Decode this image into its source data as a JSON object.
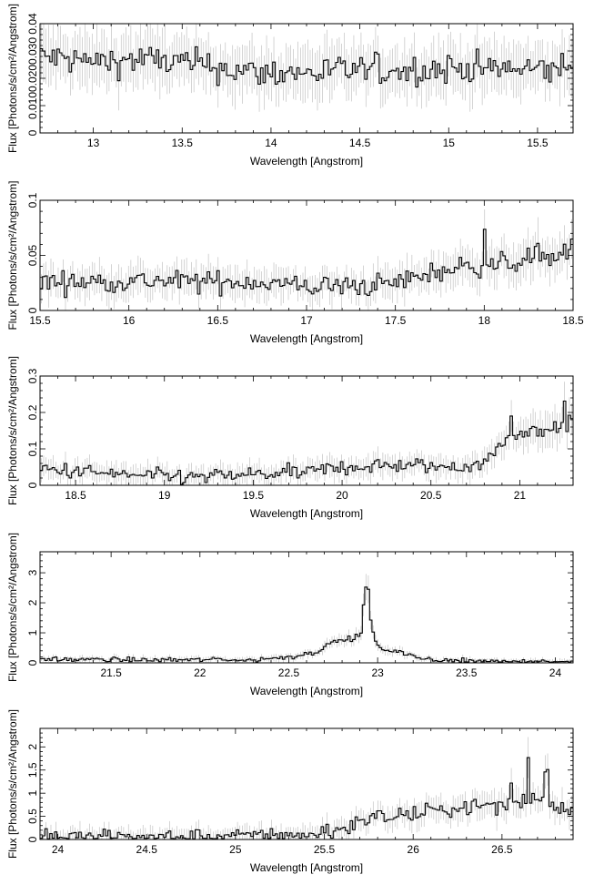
{
  "figure": {
    "ylabel_text": "Flux [Photons/s/cm²/Angstrom]",
    "xlabel_text": "Wavelength [Angstrom]"
  },
  "chart_data": [
    {
      "type": "line",
      "style": "step-histogram with error bars",
      "xlabel": "Wavelength [Angstrom]",
      "ylabel": "Flux [Photons/s/cm²/Angstrom]",
      "xlim": [
        12.7,
        15.7
      ],
      "ylim": [
        0,
        0.04
      ],
      "xticks": [
        13,
        13.5,
        14,
        14.5,
        15,
        15.5
      ],
      "xtick_labels": [
        "13",
        "13.5",
        "14",
        "14.5",
        "15",
        "15.5"
      ],
      "yticks": [
        0,
        0.01,
        0.02,
        0.03,
        0.04
      ],
      "ytick_labels": [
        "0",
        "0.010",
        "0.020",
        "0.030",
        "0.04"
      ],
      "grid": false,
      "x": [
        12.7,
        13.0,
        13.3,
        13.6,
        13.9,
        14.2,
        14.5,
        14.8,
        15.1,
        15.4,
        15.7
      ],
      "y": [
        0.028,
        0.026,
        0.027,
        0.025,
        0.022,
        0.022,
        0.023,
        0.023,
        0.024,
        0.023,
        0.024
      ],
      "noise": 0.004,
      "spikes": []
    },
    {
      "type": "line",
      "style": "step-histogram with error bars",
      "xlabel": "Wavelength [Angstrom]",
      "ylabel": "Flux [Photons/s/cm²/Angstrom]",
      "xlim": [
        15.5,
        18.5
      ],
      "ylim": [
        0,
        0.1
      ],
      "xticks": [
        15.5,
        16,
        16.5,
        17,
        17.5,
        18,
        18.5
      ],
      "xtick_labels": [
        "15.5",
        "16",
        "16.5",
        "17",
        "17.5",
        "18",
        "18.5"
      ],
      "yticks": [
        0,
        0.05,
        0.1
      ],
      "ytick_labels": [
        "0",
        "0.05",
        "0.1"
      ],
      "grid": false,
      "x": [
        15.5,
        15.8,
        16.1,
        16.4,
        16.7,
        17.0,
        17.3,
        17.5,
        17.7,
        17.9,
        18.1,
        18.3,
        18.5
      ],
      "y": [
        0.026,
        0.026,
        0.027,
        0.026,
        0.026,
        0.022,
        0.022,
        0.025,
        0.034,
        0.04,
        0.042,
        0.048,
        0.05
      ],
      "noise": 0.007,
      "spikes": [
        [
          18.0,
          0.078
        ],
        [
          18.3,
          0.067
        ],
        [
          18.5,
          0.062
        ]
      ]
    },
    {
      "type": "line",
      "style": "step-histogram with error bars",
      "xlabel": "Wavelength [Angstrom]",
      "ylabel": "Flux [Photons/s/cm²/Angstrom]",
      "xlim": [
        18.3,
        21.3
      ],
      "ylim": [
        0,
        0.3
      ],
      "xticks": [
        18.5,
        19,
        19.5,
        20,
        20.5,
        21
      ],
      "xtick_labels": [
        "18.5",
        "19",
        "19.5",
        "20",
        "20.5",
        "21"
      ],
      "yticks": [
        0,
        0.1,
        0.2,
        0.3
      ],
      "ytick_labels": [
        "0",
        "0.1",
        "0.2",
        "0.3"
      ],
      "grid": false,
      "x": [
        18.3,
        18.6,
        18.9,
        19.2,
        19.5,
        19.8,
        20.0,
        20.3,
        20.6,
        20.8,
        20.95,
        21.1,
        21.3
      ],
      "y": [
        0.045,
        0.035,
        0.025,
        0.022,
        0.03,
        0.035,
        0.05,
        0.055,
        0.05,
        0.06,
        0.14,
        0.15,
        0.17
      ],
      "noise": 0.015,
      "spikes": [
        [
          20.95,
          0.19
        ],
        [
          21.25,
          0.235
        ]
      ]
    },
    {
      "type": "line",
      "style": "step-histogram with error bars",
      "xlabel": "Wavelength [Angstrom]",
      "ylabel": "Flux [Photons/s/cm²/Angstrom]",
      "xlim": [
        21.1,
        24.1
      ],
      "ylim": [
        0,
        3.7
      ],
      "xticks": [
        21.5,
        22,
        22.5,
        23,
        23.5,
        24
      ],
      "xtick_labels": [
        "21.5",
        "22",
        "22.5",
        "23",
        "23.5",
        "24"
      ],
      "yticks": [
        0,
        1,
        2,
        3
      ],
      "ytick_labels": [
        "0",
        "1",
        "2",
        "3"
      ],
      "grid": false,
      "x": [
        21.1,
        21.5,
        22.0,
        22.3,
        22.5,
        22.65,
        22.75,
        22.85,
        22.9,
        22.95,
        23.0,
        23.1,
        23.2,
        23.35,
        23.5,
        24.1
      ],
      "y": [
        0.12,
        0.1,
        0.1,
        0.1,
        0.2,
        0.35,
        0.7,
        0.8,
        0.9,
        1.6,
        0.5,
        0.4,
        0.2,
        0.08,
        0.05,
        0.03
      ],
      "noise": 0.06,
      "spikes": [
        [
          22.94,
          2.5
        ],
        [
          22.925,
          1.9
        ]
      ]
    },
    {
      "type": "line",
      "style": "step-histogram with error bars",
      "xlabel": "Wavelength [Angstrom]",
      "ylabel": "Flux [Photons/s/cm²/Angstrom]",
      "xlim": [
        23.9,
        26.9
      ],
      "ylim": [
        0,
        2.4
      ],
      "xticks": [
        24,
        24.5,
        25,
        25.5,
        26,
        26.5
      ],
      "xtick_labels": [
        "24",
        "24.5",
        "25",
        "25.5",
        "26",
        "26.5"
      ],
      "yticks": [
        0,
        0.5,
        1,
        1.5,
        2
      ],
      "ytick_labels": [
        "0",
        "0.5",
        "1",
        "1.5",
        "2"
      ],
      "grid": false,
      "x": [
        23.9,
        24.5,
        25.0,
        25.4,
        25.6,
        25.75,
        25.9,
        26.1,
        26.3,
        26.5,
        26.7,
        26.9
      ],
      "y": [
        0.04,
        0.05,
        0.06,
        0.1,
        0.25,
        0.45,
        0.5,
        0.6,
        0.7,
        0.75,
        0.9,
        0.6
      ],
      "noise": 0.12,
      "spikes": [
        [
          26.65,
          1.75
        ],
        [
          26.75,
          1.45
        ],
        [
          26.55,
          1.25
        ]
      ]
    }
  ]
}
